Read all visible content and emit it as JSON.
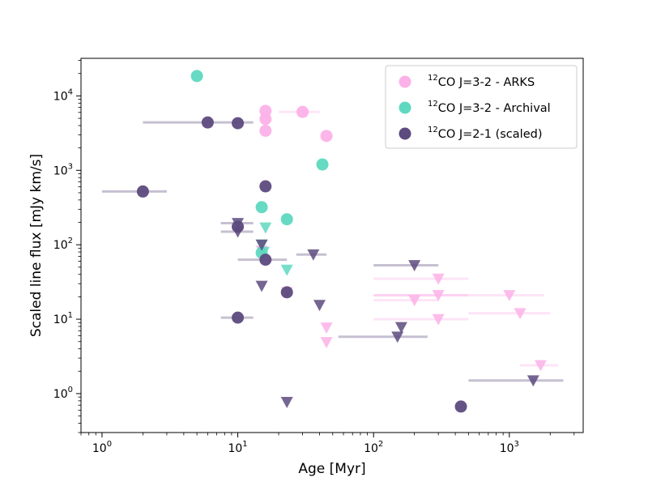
{
  "chart_data": {
    "type": "scatter",
    "xlabel": "Age [Myr]",
    "ylabel": "Scaled line flux [mJy km/s]",
    "xscale": "log",
    "yscale": "log",
    "xlim": [
      0.7,
      3500
    ],
    "ylim": [
      0.3,
      32000
    ],
    "x_ticks": [
      {
        "value": 1,
        "label": "10",
        "exp": "0"
      },
      {
        "value": 10,
        "label": "10",
        "exp": "1"
      },
      {
        "value": 100,
        "label": "10",
        "exp": "2"
      },
      {
        "value": 1000,
        "label": "10",
        "exp": "3"
      }
    ],
    "y_ticks": [
      {
        "value": 1,
        "label": "10",
        "exp": "0"
      },
      {
        "value": 10,
        "label": "10",
        "exp": "1"
      },
      {
        "value": 100,
        "label": "10",
        "exp": "2"
      },
      {
        "value": 1000,
        "label": "10",
        "exp": "3"
      },
      {
        "value": 10000,
        "label": "10",
        "exp": "4"
      }
    ],
    "grid": false,
    "legend": {
      "placement": "upper-right",
      "entries": [
        {
          "sup": "12",
          "text": "CO J=3-2 - ARKS",
          "color": "#fcb1e8"
        },
        {
          "sup": "12",
          "text": "CO J=3-2 - Archival",
          "color": "#5fd8c0"
        },
        {
          "sup": "12",
          "text": "CO J=2-1 (scaled)",
          "color": "#5d4a7e"
        }
      ]
    },
    "series": [
      {
        "color": "#fcb1e8",
        "detections": [
          {
            "x": 16,
            "y": 6300
          },
          {
            "x": 16,
            "y": 4900
          },
          {
            "x": 16,
            "y": 3400
          },
          {
            "x": 30,
            "y": 6100,
            "xerr": [
              20,
              40
            ]
          },
          {
            "x": 45,
            "y": 2900
          }
        ],
        "upper_limits": [
          {
            "x": 15,
            "y": 83
          },
          {
            "x": 23,
            "y": 23
          },
          {
            "x": 45,
            "y": 7.7
          },
          {
            "x": 45,
            "y": 4.9
          },
          {
            "x": 200,
            "y": 18,
            "xerr": [
              100,
              300
            ]
          },
          {
            "x": 300,
            "y": 35,
            "xerr": [
              100,
              500
            ]
          },
          {
            "x": 300,
            "y": 21,
            "xerr": [
              100,
              500
            ]
          },
          {
            "x": 300,
            "y": 10,
            "xerr": [
              100,
              500
            ]
          },
          {
            "x": 1000,
            "y": 21,
            "xerr": [
              100,
              1800
            ]
          },
          {
            "x": 1200,
            "y": 12,
            "xerr": [
              500,
              2000
            ]
          },
          {
            "x": 1700,
            "y": 2.4,
            "xerr": [
              1200,
              2300
            ]
          }
        ]
      },
      {
        "color": "#5fd8c0",
        "detections": [
          {
            "x": 5,
            "y": 18500
          },
          {
            "x": 42,
            "y": 1200
          },
          {
            "x": 15,
            "y": 320
          },
          {
            "x": 23,
            "y": 220
          },
          {
            "x": 15,
            "y": 78
          }
        ],
        "upper_limits": [
          {
            "x": 16,
            "y": 170
          },
          {
            "x": 15,
            "y": 100
          },
          {
            "x": 15.5,
            "y": 80
          },
          {
            "x": 23,
            "y": 46
          }
        ]
      },
      {
        "color": "#5d4a7e",
        "detections": [
          {
            "x": 6,
            "y": 4400,
            "xerr": [
              2,
              13
            ]
          },
          {
            "x": 10,
            "y": 4300
          },
          {
            "x": 16,
            "y": 610
          },
          {
            "x": 2,
            "y": 520,
            "xerr": [
              1,
              3
            ]
          },
          {
            "x": 10,
            "y": 175
          },
          {
            "x": 16,
            "y": 63,
            "xerr": [
              10,
              23
            ]
          },
          {
            "x": 23,
            "y": 23
          },
          {
            "x": 10,
            "y": 10.5,
            "xerr": [
              7.5,
              13
            ]
          },
          {
            "x": 440,
            "y": 0.67
          }
        ],
        "upper_limits": [
          {
            "x": 10,
            "y": 195,
            "xerr": [
              7.5,
              13
            ]
          },
          {
            "x": 10,
            "y": 150,
            "xerr": [
              7.5,
              13
            ]
          },
          {
            "x": 15,
            "y": 100
          },
          {
            "x": 15,
            "y": 28
          },
          {
            "x": 36,
            "y": 74,
            "xerr": [
              27,
              45
            ]
          },
          {
            "x": 40,
            "y": 15.5
          },
          {
            "x": 200,
            "y": 53,
            "xerr": [
              100,
              300
            ]
          },
          {
            "x": 160,
            "y": 7.8
          },
          {
            "x": 150,
            "y": 5.8,
            "xerr": [
              55,
              250
            ]
          },
          {
            "x": 1500,
            "y": 1.5,
            "xerr": [
              500,
              2500
            ]
          },
          {
            "x": 23,
            "y": 0.77
          }
        ]
      }
    ]
  }
}
